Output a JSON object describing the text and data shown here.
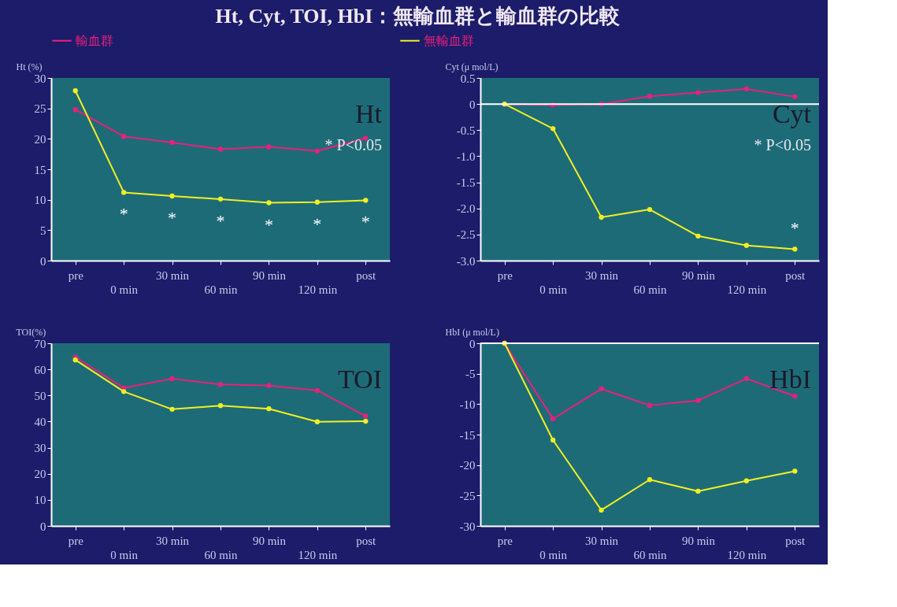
{
  "chart_data": [
    {
      "type": "line",
      "title": "Ht, Cyt, TOI, HbI：無輸血群と輸血群の比較",
      "ylabel": "Ht (%)",
      "categories": [
        "pre",
        "0 min",
        "30 min",
        "60 min",
        "90 min",
        "120 min",
        "post"
      ],
      "series": [
        {
          "name": "輸血群",
          "color": "#e8207a",
          "values": [
            24.8,
            20.4,
            19.4,
            18.3,
            18.7,
            18.0,
            20.1
          ]
        },
        {
          "name": "無輸血群",
          "color": "#f0f020",
          "values": [
            27.9,
            11.2,
            10.6,
            10.1,
            9.5,
            9.6,
            9.9
          ]
        }
      ],
      "ylim": [
        0,
        30
      ],
      "yticks": [
        0,
        5,
        10,
        15,
        20,
        25,
        30
      ],
      "annotations": [
        "Ht",
        "* P<0.05",
        "*",
        "*",
        "*",
        "*",
        "*",
        "*"
      ],
      "legend": "top",
      "marker": "circle",
      "grid": false
    },
    {
      "type": "line",
      "ylabel": "Cyt (μ mol/L)",
      "categories": [
        "pre",
        "0 min",
        "30 min",
        "60 min",
        "90 min",
        "120 min",
        "post"
      ],
      "series": [
        {
          "name": "輸血群",
          "color": "#e8207a",
          "values": [
            0.0,
            -0.02,
            0.0,
            0.15,
            0.22,
            0.29,
            0.14
          ]
        },
        {
          "name": "無輸血群",
          "color": "#f0f020",
          "values": [
            0.0,
            -0.47,
            -2.17,
            -2.02,
            -2.53,
            -2.71,
            -2.78
          ]
        }
      ],
      "ylim": [
        -3.0,
        0.5
      ],
      "yticks": [
        0.5,
        0,
        -0.5,
        {
          "value": -1.0,
          "label": "-1.0"
        },
        -1.5,
        {
          "value": -2.0,
          "label": "-2.0"
        },
        -2.5,
        {
          "value": -3.0,
          "label": "-3.0"
        }
      ],
      "ref_lines": [
        {
          "axis": "y",
          "value": 0,
          "color": "#ffffff"
        }
      ],
      "annotations": [
        "Cyt",
        "* P<0.05",
        "*"
      ],
      "marker": "circle",
      "grid": false
    },
    {
      "type": "line",
      "ylabel": "TOI(%)",
      "categories": [
        "pre",
        "0 min",
        "30 min",
        "60 min",
        "90 min",
        "120 min",
        "post"
      ],
      "series": [
        {
          "name": "輸血群",
          "color": "#e8207a",
          "values": [
            64.7,
            52.9,
            56.4,
            54.2,
            53.8,
            51.9,
            42.1
          ]
        },
        {
          "name": "無輸血群",
          "color": "#f0f020",
          "values": [
            63.6,
            51.5,
            44.7,
            46.1,
            44.9,
            39.9,
            40.1
          ]
        }
      ],
      "ylim": [
        0,
        70
      ],
      "yticks": [
        0,
        10,
        20,
        30,
        40,
        50,
        60,
        70
      ],
      "annotations": [
        "TOI"
      ],
      "marker": "circle",
      "grid": false
    },
    {
      "type": "line",
      "ylabel": "HbI (μ mol/L)",
      "categories": [
        "pre",
        "0 min",
        "30 min",
        "60 min",
        "90 min",
        "120 min",
        "post"
      ],
      "series": [
        {
          "name": "輸血群",
          "color": "#e8207a",
          "values": [
            0,
            -12.4,
            -7.5,
            -10.2,
            -9.4,
            -5.8,
            -8.7
          ]
        },
        {
          "name": "無輸血群",
          "color": "#f0f020",
          "values": [
            0,
            -15.9,
            -27.4,
            -22.4,
            -24.3,
            -22.6,
            -21.0
          ]
        }
      ],
      "ylim": [
        -30,
        0
      ],
      "yticks": [
        0,
        -5,
        -10,
        -15,
        -20,
        -25,
        -30
      ],
      "ref_lines": [
        {
          "axis": "y",
          "value": 0,
          "color": "#ffffff"
        }
      ],
      "annotations": [
        "HbI"
      ],
      "marker": "circle",
      "grid": false
    }
  ]
}
